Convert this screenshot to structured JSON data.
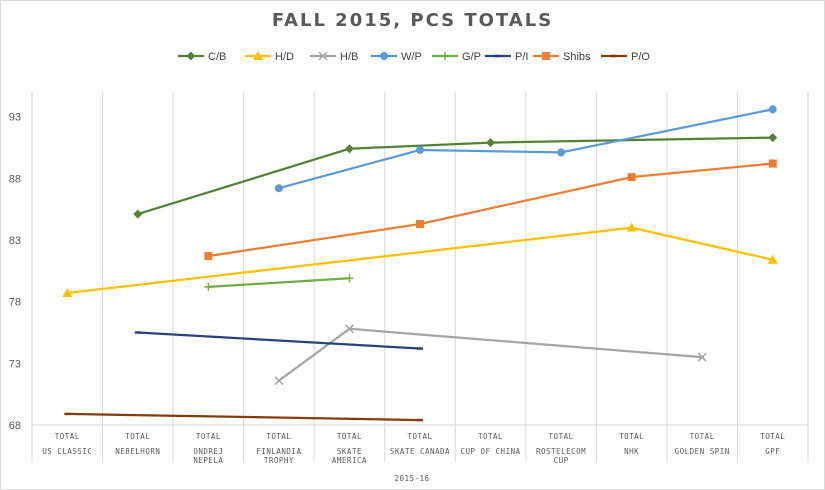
{
  "chart_data": {
    "type": "line",
    "title": "FALL 2015, PCS TOTALS",
    "xlabel": "2015-16",
    "ylabel": "",
    "ylim": [
      68,
      95
    ],
    "yticks": [
      68,
      73,
      78,
      83,
      88,
      93
    ],
    "grid": "vertical",
    "legend_position": "top",
    "categories": [
      [
        "TOTAL",
        "US CLASSIC"
      ],
      [
        "TOTAL",
        "NEBELHORN"
      ],
      [
        "TOTAL",
        "ONDREJ",
        "NEPELA"
      ],
      [
        "TOTAL",
        "FINLANDIA",
        "TROPHY"
      ],
      [
        "TOTAL",
        "SKATE",
        "AMERICA"
      ],
      [
        "TOTAL",
        "SKATE CANADA"
      ],
      [
        "TOTAL",
        "CUP OF CHINA"
      ],
      [
        "TOTAL",
        "ROSTELECOM",
        "CUP"
      ],
      [
        "TOTAL",
        "NHK"
      ],
      [
        "TOTAL",
        "GOLDEN SPIN"
      ],
      [
        "TOTAL",
        "GPF"
      ]
    ],
    "series": [
      {
        "name": "C/B",
        "color": "#548235",
        "marker": "diamond",
        "points": [
          [
            1,
            85.1
          ],
          [
            4,
            90.4
          ],
          [
            6,
            90.9
          ],
          [
            10,
            91.3
          ]
        ]
      },
      {
        "name": "H/D",
        "color": "#ffc000",
        "marker": "triangle",
        "points": [
          [
            0,
            78.7
          ],
          [
            8,
            84.0
          ],
          [
            10,
            81.4
          ]
        ]
      },
      {
        "name": "H/B",
        "color": "#a5a5a5",
        "marker": "x",
        "points": [
          [
            3,
            71.6
          ],
          [
            4,
            75.8
          ],
          [
            9,
            73.5
          ]
        ]
      },
      {
        "name": "W/P",
        "color": "#5b9bd5",
        "marker": "circle",
        "points": [
          [
            3,
            87.2
          ],
          [
            5,
            90.3
          ],
          [
            7,
            90.1
          ],
          [
            10,
            93.6
          ]
        ]
      },
      {
        "name": "G/P",
        "color": "#70ad47",
        "marker": "plus",
        "points": [
          [
            2,
            79.2
          ],
          [
            4,
            79.9
          ]
        ]
      },
      {
        "name": "P/I",
        "color": "#264478",
        "marker": "dash",
        "points": [
          [
            1,
            75.5
          ],
          [
            5,
            74.2
          ]
        ]
      },
      {
        "name": "Shibs",
        "color": "#ed7d31",
        "marker": "square",
        "points": [
          [
            2,
            81.7
          ],
          [
            5,
            84.3
          ],
          [
            8,
            88.1
          ],
          [
            10,
            89.2
          ]
        ]
      },
      {
        "name": "P/O",
        "color": "#843c0c",
        "marker": "dash",
        "points": [
          [
            0,
            68.9
          ],
          [
            5,
            68.4
          ]
        ]
      }
    ]
  }
}
